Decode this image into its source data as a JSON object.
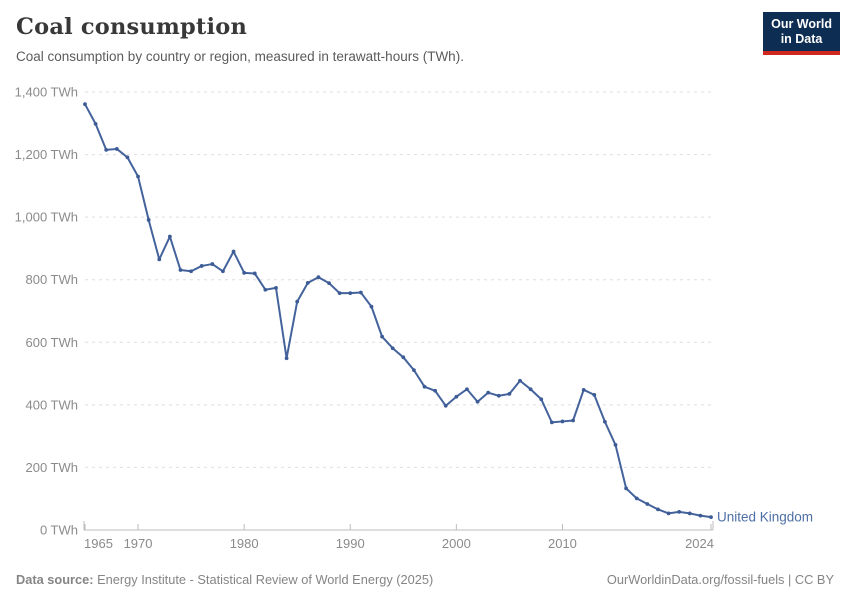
{
  "header": {
    "title": "Coal consumption",
    "subtitle": "Coal consumption by country or region, measured in terawatt-hours (TWh)."
  },
  "logo": {
    "line1": "Our World",
    "line2": "in Data",
    "bg_color": "#0d2d52",
    "bar_color": "#d0281e"
  },
  "chart_data": {
    "type": "line",
    "title": "Coal consumption",
    "unit": "TWh",
    "entity": "United Kingdom",
    "end_label": "United Kingdom",
    "x": [
      1965,
      1966,
      1967,
      1968,
      1969,
      1970,
      1971,
      1972,
      1973,
      1974,
      1975,
      1976,
      1977,
      1978,
      1979,
      1980,
      1981,
      1982,
      1983,
      1984,
      1985,
      1986,
      1987,
      1988,
      1989,
      1990,
      1991,
      1992,
      1993,
      1994,
      1995,
      1996,
      1997,
      1998,
      1999,
      2000,
      2001,
      2002,
      2003,
      2004,
      2005,
      2006,
      2007,
      2008,
      2009,
      2010,
      2011,
      2012,
      2013,
      2014,
      2015,
      2016,
      2017,
      2018,
      2019,
      2020,
      2021,
      2022,
      2023,
      2024
    ],
    "series": [
      {
        "name": "United Kingdom",
        "values": [
          1361,
          1298,
          1215,
          1218,
          1191,
          1130,
          991,
          865,
          938,
          831,
          827,
          844,
          850,
          827,
          890,
          822,
          820,
          768,
          774,
          549,
          730,
          790,
          808,
          789,
          757,
          757,
          759,
          714,
          618,
          581,
          552,
          511,
          458,
          445,
          397,
          426,
          450,
          410,
          439,
          429,
          435,
          477,
          450,
          418,
          344,
          347,
          350,
          448,
          432,
          346,
          272,
          133,
          101,
          83,
          66,
          53,
          58,
          53,
          46,
          41
        ]
      }
    ],
    "xlim": [
      1965,
      2024
    ],
    "ylim": [
      0,
      1400
    ],
    "xticks": [
      1965,
      1970,
      1980,
      1990,
      2000,
      2010,
      2024
    ],
    "yticks": [
      0,
      200,
      400,
      600,
      800,
      1000,
      1200,
      1400
    ],
    "ytick_suffix": " TWh",
    "grid": true,
    "legend_position": "end-of-line",
    "line_color": "#44639c",
    "marker_color": "#3d5c96",
    "label_color": "#4e6fa5",
    "gridline_color": "#dedede",
    "axis_color": "#bcbcbc",
    "tick_label_color": "#8b8b8b"
  },
  "footer": {
    "datasource_label": "Data source:",
    "datasource_text": "Energy Institute - Statistical Review of World Energy (2025)",
    "credit": "OurWorldinData.org/fossil-fuels | CC BY"
  }
}
